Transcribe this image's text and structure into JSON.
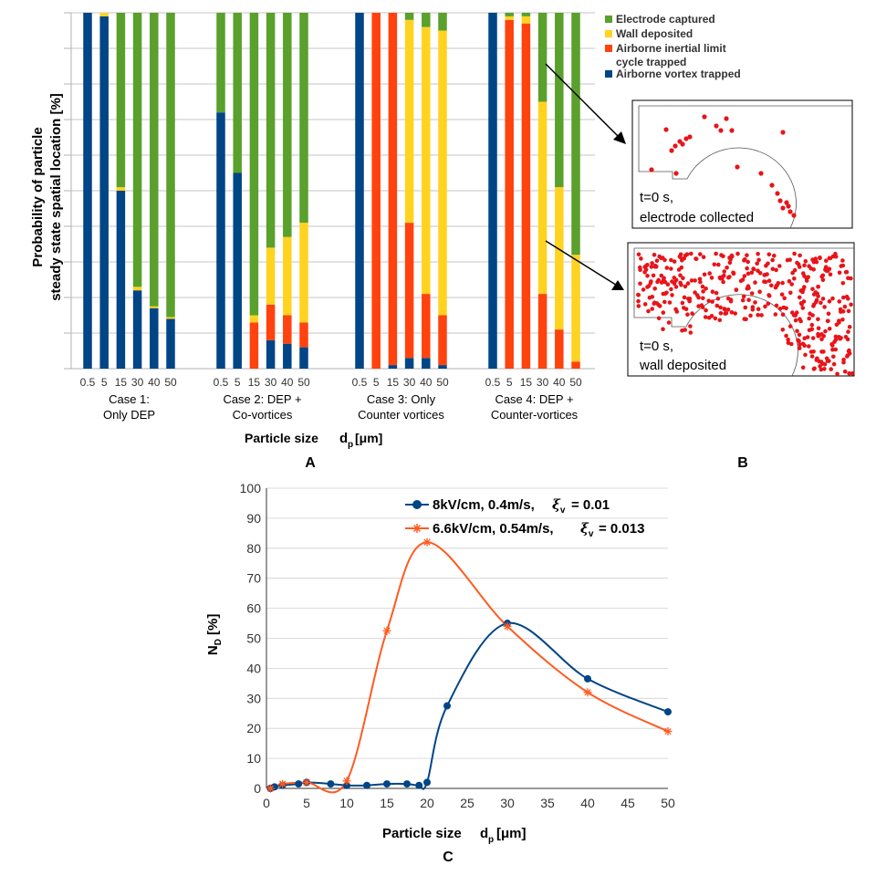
{
  "panel_labels": {
    "a": "A",
    "b": "B",
    "c": "C"
  },
  "chart_data": [
    {
      "id": "A",
      "type": "stacked-bar",
      "ylabel_line1": "Probability of particle",
      "ylabel_line2": "steady state spatial location [%]",
      "xlabel": "Particle size",
      "xlabel_symbol": "d",
      "xlabel_sub": "p",
      "xlabel_unit": "[μm]",
      "ylim": [
        0,
        100
      ],
      "legend": [
        {
          "name": "Electrode captured",
          "color": "#5aa02c"
        },
        {
          "name": "Wall deposited",
          "color": "#ffd320"
        },
        {
          "name": "Airborne inertial limit",
          "name2": "cycle trapped",
          "color": "#ff420e"
        },
        {
          "name": "Airborne vortex trapped",
          "color": "#004586"
        }
      ],
      "series_order": [
        "vortex",
        "inertial",
        "wall",
        "electrode"
      ],
      "colors": {
        "vortex": "#004586",
        "inertial": "#ff420e",
        "wall": "#ffd320",
        "electrode": "#5aa02c"
      },
      "groups": [
        {
          "label1": "Case 1:",
          "label2": "Only DEP",
          "sizes": [
            "0.5",
            "5",
            "15",
            "30",
            "40",
            "50"
          ],
          "bars": [
            {
              "vortex": 100,
              "inertial": 0,
              "wall": 0,
              "electrode": 0
            },
            {
              "vortex": 99,
              "inertial": 0,
              "wall": 1,
              "electrode": 0
            },
            {
              "vortex": 50,
              "inertial": 0,
              "wall": 1,
              "electrode": 49
            },
            {
              "vortex": 22,
              "inertial": 0,
              "wall": 1,
              "electrode": 77
            },
            {
              "vortex": 17,
              "inertial": 0,
              "wall": 0.5,
              "electrode": 82.5
            },
            {
              "vortex": 14,
              "inertial": 0,
              "wall": 0.5,
              "electrode": 85.5
            }
          ]
        },
        {
          "label1": "Case 2: DEP +",
          "label2": "Co-vortices",
          "sizes": [
            "0.5",
            "5",
            "15",
            "30",
            "40",
            "50"
          ],
          "bars": [
            {
              "vortex": 72,
              "inertial": 0,
              "wall": 0,
              "electrode": 28
            },
            {
              "vortex": 55,
              "inertial": 0,
              "wall": 0,
              "electrode": 45
            },
            {
              "vortex": 0,
              "inertial": 13,
              "wall": 2,
              "electrode": 85
            },
            {
              "vortex": 8,
              "inertial": 10,
              "wall": 16,
              "electrode": 66
            },
            {
              "vortex": 7,
              "inertial": 8,
              "wall": 22,
              "electrode": 63
            },
            {
              "vortex": 6,
              "inertial": 7,
              "wall": 28,
              "electrode": 59
            }
          ]
        },
        {
          "label1": "Case 3: Only",
          "label2": "Counter vortices",
          "sizes": [
            "0.5",
            "5",
            "15",
            "30",
            "40",
            "50"
          ],
          "bars": [
            {
              "vortex": 100,
              "inertial": 0,
              "wall": 0,
              "electrode": 0
            },
            {
              "vortex": 0,
              "inertial": 100,
              "wall": 0,
              "electrode": 0
            },
            {
              "vortex": 1,
              "inertial": 99,
              "wall": 0,
              "electrode": 0
            },
            {
              "vortex": 3,
              "inertial": 38,
              "wall": 57,
              "electrode": 2
            },
            {
              "vortex": 3,
              "inertial": 18,
              "wall": 75,
              "electrode": 4
            },
            {
              "vortex": 1,
              "inertial": 14,
              "wall": 80,
              "electrode": 5
            }
          ]
        },
        {
          "label1": "Case 4: DEP +",
          "label2": "Counter-vortices",
          "sizes": [
            "0.5",
            "5",
            "15",
            "30",
            "40",
            "50"
          ],
          "bars": [
            {
              "vortex": 100,
              "inertial": 0,
              "wall": 0,
              "electrode": 0
            },
            {
              "vortex": 0,
              "inertial": 98,
              "wall": 1,
              "electrode": 1
            },
            {
              "vortex": 0,
              "inertial": 97,
              "wall": 2,
              "electrode": 1
            },
            {
              "vortex": 0,
              "inertial": 21,
              "wall": 54,
              "electrode": 25
            },
            {
              "vortex": 0,
              "inertial": 11,
              "wall": 40,
              "electrode": 49
            },
            {
              "vortex": 0,
              "inertial": 2,
              "wall": 30,
              "electrode": 68
            }
          ]
        }
      ]
    },
    {
      "id": "C",
      "type": "line",
      "ylabel": "N",
      "ylabel_sub": "D",
      "ylabel_unit": "[%]",
      "xlabel": "Particle size",
      "xlabel_symbol": "d",
      "xlabel_sub": "p",
      "xlabel_unit": "[μm]",
      "xlim": [
        0,
        50
      ],
      "ylim": [
        0,
        100
      ],
      "xticks": [
        0,
        5,
        10,
        15,
        20,
        25,
        30,
        35,
        40,
        45,
        50
      ],
      "yticks": [
        0,
        10,
        20,
        30,
        40,
        50,
        60,
        70,
        80,
        90,
        100
      ],
      "series": [
        {
          "name": "8kV/cm, 0.4m/s,",
          "param_symbol": "ξ",
          "param_sub": "v",
          "param_value": "= 0.01",
          "color": "#004586",
          "marker": "circle",
          "x": [
            0.5,
            1,
            2,
            4,
            5,
            8,
            10,
            12.5,
            15,
            17.5,
            19,
            20,
            22.5,
            30,
            40,
            50
          ],
          "y": [
            0,
            0.5,
            1,
            1.5,
            2,
            1.5,
            1,
            1,
            1.5,
            1.5,
            1,
            2,
            27.5,
            55,
            36.5,
            25.5
          ]
        },
        {
          "name": "6.6kV/cm, 0.54m/s,",
          "param_symbol": "ξ",
          "param_sub": "v",
          "param_value": "= 0.013",
          "color": "#ff5b20",
          "marker": "star",
          "x": [
            0.5,
            2,
            5,
            10,
            15,
            20,
            30,
            40,
            50
          ],
          "y": [
            0,
            1.5,
            2,
            2.5,
            52.5,
            82,
            54,
            32,
            19
          ]
        }
      ]
    }
  ],
  "panel_b": {
    "top": {
      "line1": "t=0 s,",
      "line2": "electrode collected"
    },
    "bottom": {
      "line1": "t=0 s,",
      "line2": "wall deposited"
    }
  }
}
